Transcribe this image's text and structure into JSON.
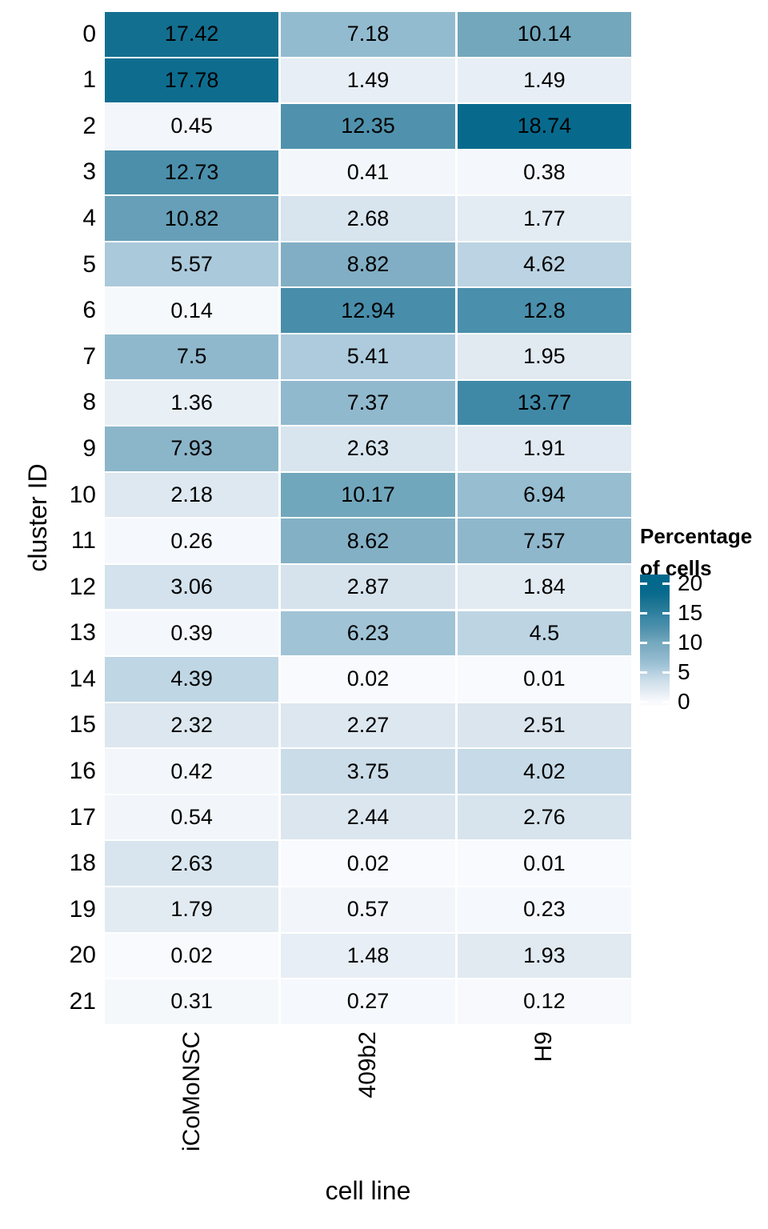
{
  "chart_data": {
    "type": "heatmap",
    "title": "",
    "xlabel": "cell line",
    "ylabel": "cluster ID",
    "x_categories": [
      "iCoMoNSC",
      "409b2",
      "H9"
    ],
    "y_categories": [
      "0",
      "1",
      "2",
      "3",
      "4",
      "5",
      "6",
      "7",
      "8",
      "9",
      "10",
      "11",
      "12",
      "13",
      "14",
      "15",
      "16",
      "17",
      "18",
      "19",
      "20",
      "21"
    ],
    "values": [
      [
        17.42,
        7.18,
        10.14
      ],
      [
        17.78,
        1.49,
        1.49
      ],
      [
        0.45,
        12.35,
        18.74
      ],
      [
        12.73,
        0.41,
        0.38
      ],
      [
        10.82,
        2.68,
        1.77
      ],
      [
        5.57,
        8.82,
        4.62
      ],
      [
        0.14,
        12.94,
        12.8
      ],
      [
        7.5,
        5.41,
        1.95
      ],
      [
        1.36,
        7.37,
        13.77
      ],
      [
        7.93,
        2.63,
        1.91
      ],
      [
        2.18,
        10.17,
        6.94
      ],
      [
        0.26,
        8.62,
        7.57
      ],
      [
        3.06,
        2.87,
        1.84
      ],
      [
        0.39,
        6.23,
        4.5
      ],
      [
        4.39,
        0.02,
        0.01
      ],
      [
        2.32,
        2.27,
        2.51
      ],
      [
        0.42,
        3.75,
        4.02
      ],
      [
        0.54,
        2.44,
        2.76
      ],
      [
        2.63,
        0.02,
        0.01
      ],
      [
        1.79,
        0.57,
        0.23
      ],
      [
        0.02,
        1.48,
        1.93
      ],
      [
        0.31,
        0.27,
        0.12
      ]
    ],
    "legend": {
      "title_line1": "Percentage",
      "title_line2": "of cells",
      "ticks": [
        20,
        15,
        10,
        5,
        0
      ],
      "position": "right"
    },
    "color_scale": {
      "low": "#F8FAFD",
      "high": "#02688C",
      "stops": [
        [
          0,
          "#F8FAFD"
        ],
        [
          1,
          "#EDF2F8"
        ],
        [
          2,
          "#E0E9F1"
        ],
        [
          3,
          "#D4E2EC"
        ],
        [
          4,
          "#C6DAE7"
        ],
        [
          5,
          "#B4CFDF"
        ],
        [
          6,
          "#A3C5D8"
        ],
        [
          7,
          "#95BCD0"
        ],
        [
          8,
          "#8AB4C9"
        ],
        [
          9,
          "#7FADC3"
        ],
        [
          10,
          "#74A9BD"
        ],
        [
          11,
          "#639DB6"
        ],
        [
          12,
          "#5595AF"
        ],
        [
          13,
          "#478DAA"
        ],
        [
          14,
          "#3C88A6"
        ],
        [
          15,
          "#2E7F9E"
        ],
        [
          16,
          "#247997"
        ],
        [
          17,
          "#197292"
        ],
        [
          18,
          "#0B6C8E"
        ],
        [
          19,
          "#05698D"
        ],
        [
          20,
          "#02688C"
        ]
      ]
    },
    "text_color": "#000000",
    "background": "#FFFFFF",
    "grid": false,
    "value_range": [
      0,
      20
    ]
  }
}
